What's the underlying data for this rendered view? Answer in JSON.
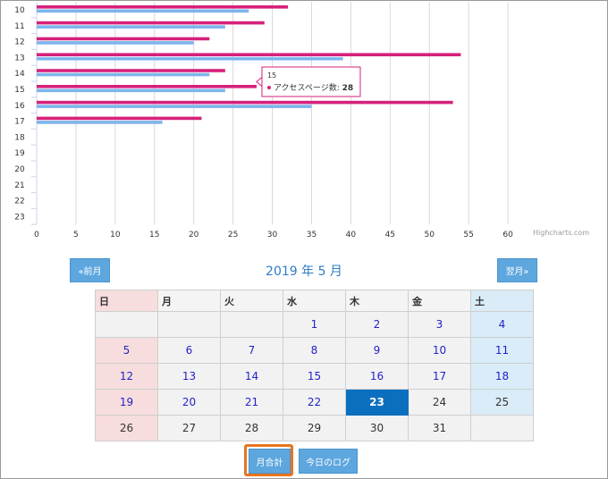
{
  "chart_data": {
    "type": "bar",
    "orientation": "horizontal",
    "categories": [
      "10",
      "11",
      "12",
      "13",
      "14",
      "15",
      "16",
      "17",
      "18",
      "19",
      "20",
      "21",
      "22",
      "23"
    ],
    "series": [
      {
        "color": "#d6217a",
        "values": [
          32,
          29,
          22,
          54,
          24,
          28,
          53,
          21,
          null,
          null,
          null,
          null,
          null,
          null
        ]
      },
      {
        "color": "#7cb4ec",
        "values": [
          27,
          24,
          20,
          39,
          22,
          24,
          35,
          16,
          null,
          null,
          null,
          null,
          null,
          null
        ]
      }
    ],
    "xlim": [
      0,
      65
    ],
    "xticks": [
      0,
      5,
      10,
      15,
      20,
      25,
      30,
      35,
      40,
      45,
      50,
      55,
      60
    ],
    "grid": "vertical",
    "tooltip": {
      "category": "15",
      "label": "アクセスページ数:",
      "value": "28"
    },
    "credits": "Highcharts.com"
  },
  "calendar": {
    "title": "2019 年  5 月",
    "prev_label": "«前月",
    "next_label": "翌月»",
    "weekdays": [
      "日",
      "月",
      "火",
      "水",
      "木",
      "金",
      "土"
    ],
    "weeks": [
      [
        "",
        "",
        "",
        "1",
        "2",
        "3",
        "4"
      ],
      [
        "5",
        "6",
        "7",
        "8",
        "9",
        "10",
        "11"
      ],
      [
        "12",
        "13",
        "14",
        "15",
        "16",
        "17",
        "18"
      ],
      [
        "19",
        "20",
        "21",
        "22",
        "23",
        "24",
        "25"
      ],
      [
        "26",
        "27",
        "28",
        "29",
        "30",
        "31",
        ""
      ]
    ],
    "today": "23"
  },
  "buttons": {
    "monthly_total": "月合計",
    "today_log": "今日のログ"
  }
}
